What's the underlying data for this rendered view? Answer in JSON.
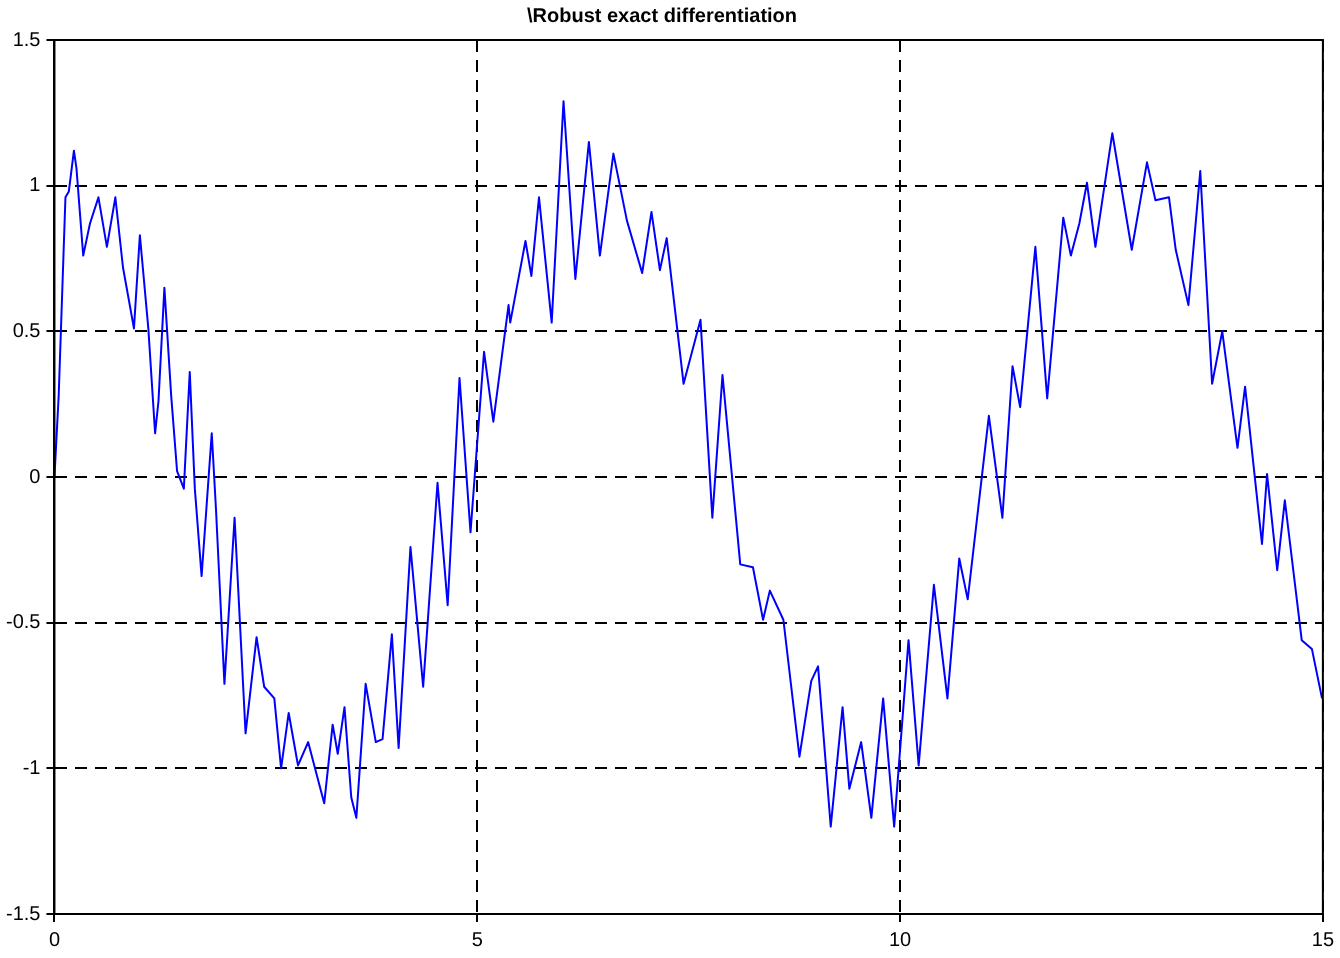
{
  "chart_data": {
    "type": "line",
    "title": "\\Robust exact differentiation",
    "x": [
      0,
      0.05,
      0.13,
      0.17,
      0.23,
      0.26,
      0.34,
      0.42,
      0.52,
      0.62,
      0.72,
      0.81,
      0.94,
      1.01,
      1.11,
      1.19,
      1.23,
      1.3,
      1.38,
      1.45,
      1.53,
      1.6,
      1.66,
      1.74,
      1.86,
      1.91,
      2.01,
      2.13,
      2.26,
      2.39,
      2.48,
      2.6,
      2.68,
      2.77,
      2.88,
      3.0,
      3.19,
      3.29,
      3.35,
      3.43,
      3.51,
      3.57,
      3.68,
      3.8,
      3.88,
      3.99,
      4.07,
      4.21,
      4.36,
      4.53,
      4.65,
      4.79,
      4.92,
      5.08,
      5.19,
      5.37,
      5.39,
      5.57,
      5.64,
      5.73,
      5.88,
      6.02,
      6.16,
      6.32,
      6.45,
      6.61,
      6.77,
      6.95,
      7.06,
      7.16,
      7.24,
      7.44,
      7.64,
      7.78,
      7.9,
      8.11,
      8.26,
      8.38,
      8.46,
      8.62,
      8.81,
      8.95,
      9.03,
      9.18,
      9.32,
      9.4,
      9.54,
      9.66,
      9.8,
      9.93,
      10.1,
      10.22,
      10.4,
      10.56,
      10.7,
      10.8,
      11.05,
      11.21,
      11.33,
      11.42,
      11.6,
      11.74,
      11.93,
      12.02,
      12.12,
      12.21,
      12.31,
      12.51,
      12.74,
      12.92,
      13.02,
      13.18,
      13.26,
      13.41,
      13.55,
      13.69,
      13.81,
      13.99,
      14.08,
      14.28,
      14.34,
      14.46,
      14.55,
      14.75,
      14.87,
      14.99
    ],
    "series": [
      {
        "color": "#0000ff",
        "values": [
          0,
          0.28,
          0.96,
          0.98,
          1.12,
          1.06,
          0.76,
          0.87,
          0.96,
          0.79,
          0.96,
          0.72,
          0.51,
          0.83,
          0.51,
          0.15,
          0.26,
          0.65,
          0.28,
          0.02,
          -0.04,
          0.36,
          -0.04,
          -0.34,
          0.15,
          -0.11,
          -0.71,
          -0.14,
          -0.88,
          -0.55,
          -0.72,
          -0.76,
          -1.0,
          -0.81,
          -0.99,
          -0.91,
          -1.12,
          -0.85,
          -0.95,
          -0.79,
          -1.1,
          -1.17,
          -0.71,
          -0.91,
          -0.9,
          -0.54,
          -0.93,
          -0.24,
          -0.72,
          -0.02,
          -0.44,
          0.34,
          -0.19,
          0.43,
          0.19,
          0.59,
          0.53,
          0.81,
          0.69,
          0.96,
          0.53,
          1.29,
          0.68,
          1.15,
          0.76,
          1.11,
          0.88,
          0.7,
          0.91,
          0.71,
          0.82,
          0.32,
          0.54,
          -0.14,
          0.35,
          -0.3,
          -0.31,
          -0.49,
          -0.39,
          -0.49,
          -0.96,
          -0.7,
          -0.65,
          -1.2,
          -0.79,
          -1.07,
          -0.91,
          -1.17,
          -0.76,
          -1.2,
          -0.56,
          -0.99,
          -0.37,
          -0.76,
          -0.28,
          -0.42,
          0.21,
          -0.14,
          0.38,
          0.24,
          0.79,
          0.27,
          0.89,
          0.76,
          0.87,
          1.01,
          0.79,
          1.18,
          0.78,
          1.08,
          0.95,
          0.96,
          0.78,
          0.59,
          1.05,
          0.32,
          0.5,
          0.1,
          0.31,
          -0.23,
          0.01,
          -0.32,
          -0.08,
          -0.56,
          -0.59,
          -0.76
        ]
      }
    ],
    "xlim": [
      0,
      15
    ],
    "xticks": [
      0,
      5,
      10,
      15
    ],
    "ylim": [
      -1.5,
      1.5
    ],
    "yticks": [
      -1.5,
      -1,
      -0.5,
      0,
      0.5,
      1,
      1.5
    ],
    "grid": true,
    "legend": false,
    "marker": "none",
    "line_style": "solid"
  }
}
